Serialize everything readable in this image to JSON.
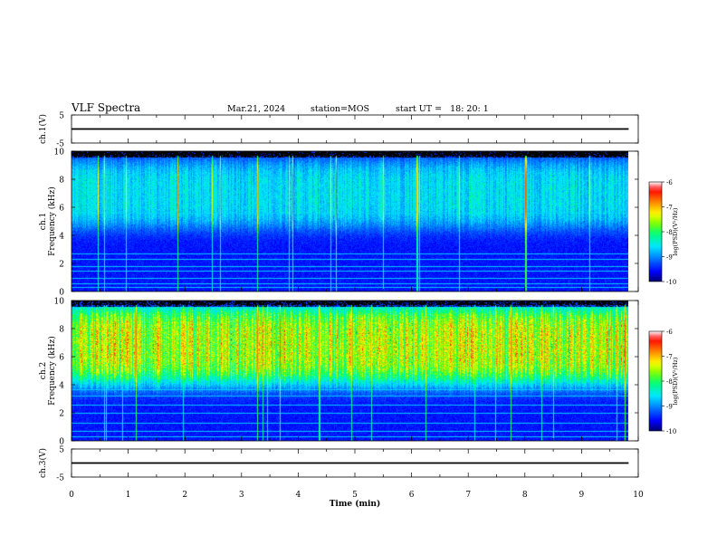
{
  "header": {
    "title": "VLF Spectra",
    "date": "Mar.21, 2024",
    "station": "station=MOS",
    "start_ut": "start UT =   18: 20: 1"
  },
  "colors": {
    "background_spectrum": "#000000",
    "line": "#000000",
    "colormap": [
      "#000080",
      "#0000ff",
      "#00bfff",
      "#00ffff",
      "#00ff66",
      "#80ff00",
      "#ffff00",
      "#ff8000",
      "#ff0000",
      "#ffffff"
    ]
  },
  "chart_data": [
    {
      "type": "line",
      "id": "ch1-waveform",
      "ylabel": "ch.1(V)",
      "ylim": [
        -5,
        5
      ],
      "yticks": [
        "5",
        "-5"
      ],
      "x": [
        0,
        9.83
      ],
      "y": [
        0,
        0
      ],
      "grid": false
    },
    {
      "type": "heatmap",
      "id": "ch1-spectrogram",
      "ylabel": "ch.1\nFrequency (kHz)",
      "ylim": [
        0,
        10
      ],
      "yticks": [
        "0",
        "2",
        "4",
        "6",
        "8",
        "10"
      ],
      "xlim": [
        0,
        9.83
      ],
      "colorbar": {
        "label": "log(PSD)(V²/Hz)",
        "range": [
          -10,
          -6
        ],
        "ticks": [
          "-6",
          "-7",
          "-8",
          "-9",
          "-10"
        ]
      },
      "band_kHz": [
        4.5,
        9.5
      ],
      "peak_level": -8.6,
      "lines_kHz": [
        0.3,
        0.6,
        1.0,
        1.5,
        1.8,
        2.3,
        2.7,
        5.6
      ]
    },
    {
      "type": "heatmap",
      "id": "ch2-spectrogram",
      "ylabel": "ch.2\nFrequency (kHz)",
      "ylim": [
        0,
        10
      ],
      "yticks": [
        "0",
        "2",
        "4",
        "6",
        "8",
        "10"
      ],
      "xlim": [
        0,
        9.83
      ],
      "colorbar": {
        "label": "log(PSD)(V²/Hz)",
        "range": [
          -10,
          -6
        ],
        "ticks": [
          "-6",
          "-7",
          "-8",
          "-9",
          "-10"
        ]
      },
      "band_kHz": [
        4.0,
        9.8
      ],
      "peak_level": -6.9,
      "lines_kHz": [
        0.3,
        0.7,
        1.3,
        2.0,
        2.6,
        3.2,
        3.7
      ]
    },
    {
      "type": "line",
      "id": "ch3-waveform",
      "ylabel": "ch.3(V)",
      "ylim": [
        -5,
        5
      ],
      "yticks": [
        "5",
        "-5"
      ],
      "x": [
        0,
        9.83
      ],
      "y": [
        0,
        0
      ],
      "grid": false
    }
  ],
  "xaxis": {
    "label": "Time (min)",
    "range": [
      0,
      10
    ],
    "ticks": [
      "0",
      "1",
      "2",
      "3",
      "4",
      "5",
      "6",
      "7",
      "8",
      "9",
      "10"
    ]
  }
}
